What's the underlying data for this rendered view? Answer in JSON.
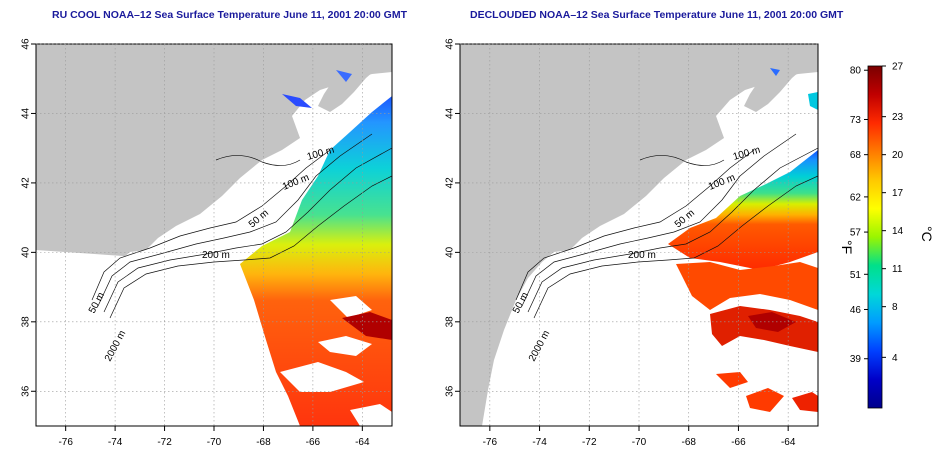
{
  "panels": [
    {
      "title": "RU COOL NOAA–12 Sea Surface Temperature June 11, 2001 20:00 GMT",
      "coverage": "full swath"
    },
    {
      "title": "DECLOUDED NOAA–12 Sea Surface Temperature June 11, 2001 20:00 GMT",
      "coverage": "declouded"
    }
  ],
  "map": {
    "lon_ticks": [
      "-76",
      "-74",
      "-72",
      "-70",
      "-68",
      "-66",
      "-64"
    ],
    "lat_ticks": [
      "46",
      "44",
      "42",
      "40",
      "38",
      "36"
    ],
    "lon_range": [
      -77.2,
      -62.8
    ],
    "lat_range": [
      35,
      46
    ],
    "grid": "dotted",
    "land_color": "#c4c4c4",
    "contour_labels": [
      "100 m",
      "100 m",
      "50 m",
      "200 m",
      "50 m",
      "2000 m"
    ]
  },
  "colorbar": {
    "f_ticks": [
      "80",
      "73",
      "68",
      "62",
      "57",
      "51",
      "46",
      "39"
    ],
    "c_ticks": [
      "27",
      "23",
      "20",
      "17",
      "14",
      "11",
      "8",
      "4"
    ],
    "f_unit": "°F",
    "c_unit": "°C",
    "colors": [
      "#7a0000",
      "#c00000",
      "#ff2a00",
      "#ff7a00",
      "#ffc800",
      "#ffff00",
      "#9af500",
      "#00e08a",
      "#00d8d8",
      "#009cff",
      "#0040ff",
      "#0000c8",
      "#00008c"
    ]
  }
}
